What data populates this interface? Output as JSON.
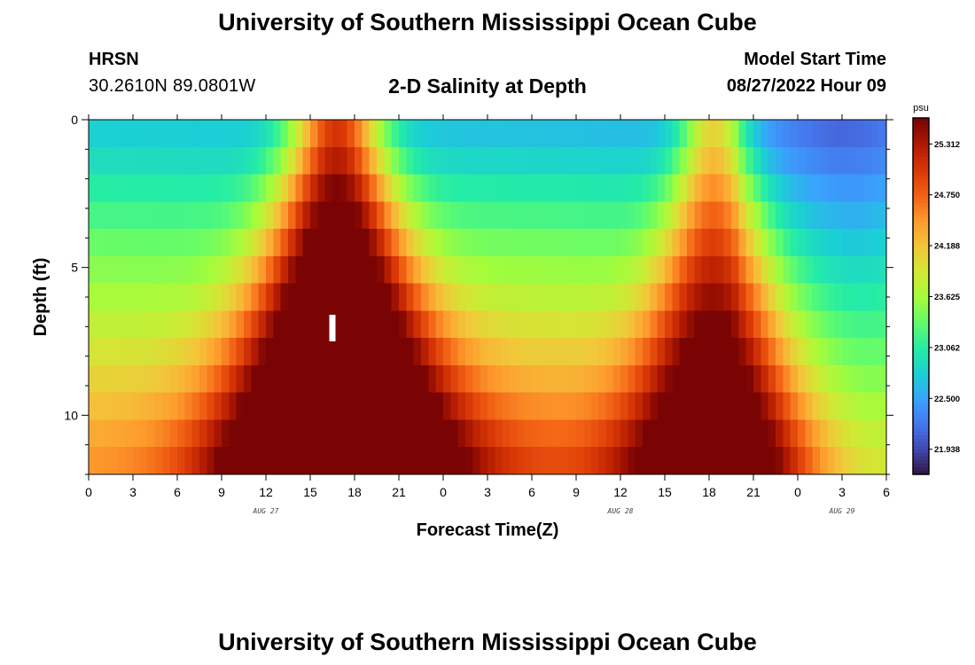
{
  "header": {
    "title": "University of Southern Mississippi Ocean Cube",
    "station": "HRSN",
    "coordinates": "30.2610N  89.0801W",
    "subtitle": "2-D Salinity at Depth",
    "model_start_label": "Model Start Time",
    "model_start_value": "08/27/2022 Hour 09"
  },
  "footer": {
    "title": "University of Southern Mississippi Ocean Cube"
  },
  "colors": {
    "scale": [
      "#30123b",
      "#4145ab",
      "#4675ed",
      "#39a2fc",
      "#1bcfd4",
      "#24eca6",
      "#61fc6c",
      "#a4fc3b",
      "#d1e834",
      "#f3c63a",
      "#fe9b2d",
      "#f36315",
      "#d93806",
      "#b11901",
      "#7a0403"
    ],
    "marker": "#ffffff"
  },
  "chart_data": {
    "type": "heatmap",
    "xlabel": "Forecast Time(Z)",
    "ylabel": "Depth (ft)",
    "colorbar_unit": "psu",
    "colorbar_ticks": [
      "25.312",
      "24.750",
      "24.188",
      "23.625",
      "23.062",
      "22.500",
      "21.938"
    ],
    "colorbar_range": [
      21.66,
      25.6
    ],
    "x_ticks": [
      "0",
      "3",
      "6",
      "9",
      "12",
      "15",
      "18",
      "21",
      "0",
      "3",
      "6",
      "9",
      "12",
      "15",
      "18",
      "21",
      "0",
      "3",
      "6"
    ],
    "x_range_hours": [
      0,
      54
    ],
    "date_labels": [
      {
        "label": "AUG 27",
        "hour": 12
      },
      {
        "label": "AUG 28",
        "hour": 36
      },
      {
        "label": "AUG 29",
        "hour": 51
      }
    ],
    "y_ticks": [
      "0",
      "5",
      "10"
    ],
    "y_range_ft": [
      0,
      12
    ],
    "depths_ft": [
      0.25,
      1,
      2,
      3,
      4,
      5,
      6,
      7,
      8,
      9,
      10,
      11,
      11.75
    ],
    "current_time_marker_hour": 16.5,
    "current_time_marker_depth_ft": [
      6.6,
      7.5
    ]
  }
}
